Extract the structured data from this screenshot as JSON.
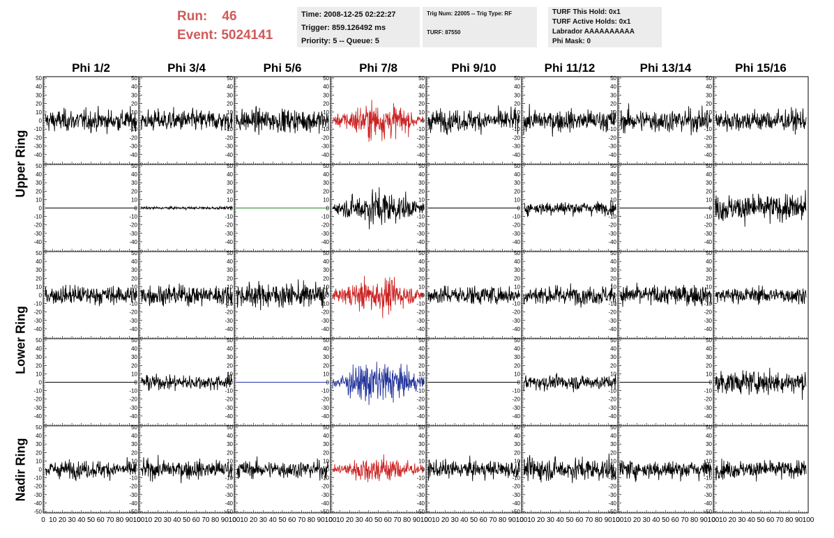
{
  "header": {
    "run_label": "Run:",
    "run_value": "46",
    "event_label": "Event:",
    "event_value": "5024141"
  },
  "info_panel_1": {
    "time": "Time: 2008-12-25 02:22:27",
    "trigger": "Trigger: 859.126492 ms",
    "priority": "Priority: 5 -- Queue: 5"
  },
  "info_panel_2": {
    "trig": "Trig Num: 22005 -- Trig Type: RF",
    "turf": "TURF: 87550"
  },
  "info_panel_3": {
    "this_hold": "TURF This Hold: 0x1",
    "active_holds": "TURF Active Holds: 0x1",
    "labrador": "Labrador AAAAAAAAAA",
    "phi_mask": "Phi Mask: 0"
  },
  "columns": [
    "Phi 1/2",
    "Phi 3/4",
    "Phi 5/6",
    "Phi 7/8",
    "Phi 9/10",
    "Phi 11/12",
    "Phi 13/14",
    "Phi 15/16"
  ],
  "ring_labels": {
    "upper": "Upper Ring",
    "lower": "Lower Ring",
    "nadir": "Nadir Ring"
  },
  "axes": {
    "y_ticks": [
      "50",
      "40",
      "30",
      "20",
      "10",
      "0",
      "-10",
      "-20",
      "-30",
      "-40"
    ],
    "y_ticks_bottom": [
      "50",
      "40",
      "30",
      "20",
      "10",
      "0",
      "-10",
      "-20",
      "-30",
      "-40",
      "-50"
    ],
    "x_ticks": [
      "0",
      "10",
      "20",
      "30",
      "40",
      "50",
      "60",
      "70",
      "80",
      "90",
      "100"
    ],
    "ylim": [
      -50,
      50
    ],
    "xlim": [
      0,
      100
    ]
  },
  "chart_data": {
    "type": "line",
    "rows": 5,
    "cols": 8,
    "panels": [
      {
        "row": 0,
        "col": 0,
        "color": "#000000",
        "amplitude": 16
      },
      {
        "row": 0,
        "col": 1,
        "color": "#000000",
        "amplitude": 16
      },
      {
        "row": 0,
        "col": 2,
        "color": "#000000",
        "amplitude": 17
      },
      {
        "row": 0,
        "col": 3,
        "color": "#cc2222",
        "amplitude": 22
      },
      {
        "row": 0,
        "col": 4,
        "color": "#000000",
        "amplitude": 16
      },
      {
        "row": 0,
        "col": 5,
        "color": "#000000",
        "amplitude": 16
      },
      {
        "row": 0,
        "col": 6,
        "color": "#000000",
        "amplitude": 17
      },
      {
        "row": 0,
        "col": 7,
        "color": "#000000",
        "amplitude": 16
      },
      {
        "row": 1,
        "col": 0,
        "color": "#000000",
        "amplitude": 0
      },
      {
        "row": 1,
        "col": 1,
        "color": "#000000",
        "amplitude": 2
      },
      {
        "row": 1,
        "col": 2,
        "color": "#228822",
        "amplitude": 0
      },
      {
        "row": 1,
        "col": 3,
        "color": "#000000",
        "amplitude": 22
      },
      {
        "row": 1,
        "col": 4,
        "color": "#000000",
        "amplitude": 0
      },
      {
        "row": 1,
        "col": 5,
        "color": "#000000",
        "amplitude": 10
      },
      {
        "row": 1,
        "col": 6,
        "color": "#000000",
        "amplitude": 0
      },
      {
        "row": 1,
        "col": 7,
        "color": "#000000",
        "amplitude": 20
      },
      {
        "row": 2,
        "col": 0,
        "color": "#000000",
        "amplitude": 14
      },
      {
        "row": 2,
        "col": 1,
        "color": "#000000",
        "amplitude": 15
      },
      {
        "row": 2,
        "col": 2,
        "color": "#000000",
        "amplitude": 18
      },
      {
        "row": 2,
        "col": 3,
        "color": "#cc2222",
        "amplitude": 21
      },
      {
        "row": 2,
        "col": 4,
        "color": "#000000",
        "amplitude": 14
      },
      {
        "row": 2,
        "col": 5,
        "color": "#000000",
        "amplitude": 14
      },
      {
        "row": 2,
        "col": 6,
        "color": "#000000",
        "amplitude": 15
      },
      {
        "row": 2,
        "col": 7,
        "color": "#000000",
        "amplitude": 12
      },
      {
        "row": 3,
        "col": 0,
        "color": "#000000",
        "amplitude": 0
      },
      {
        "row": 3,
        "col": 1,
        "color": "#000000",
        "amplitude": 11
      },
      {
        "row": 3,
        "col": 2,
        "color": "#2233aa",
        "amplitude": 0
      },
      {
        "row": 3,
        "col": 3,
        "color": "#223399",
        "amplitude": 26
      },
      {
        "row": 3,
        "col": 4,
        "color": "#000000",
        "amplitude": 0
      },
      {
        "row": 3,
        "col": 5,
        "color": "#000000",
        "amplitude": 11
      },
      {
        "row": 3,
        "col": 6,
        "color": "#000000",
        "amplitude": 0
      },
      {
        "row": 3,
        "col": 7,
        "color": "#000000",
        "amplitude": 17
      },
      {
        "row": 4,
        "col": 0,
        "color": "#000000",
        "amplitude": 13
      },
      {
        "row": 4,
        "col": 1,
        "color": "#000000",
        "amplitude": 14
      },
      {
        "row": 4,
        "col": 2,
        "color": "#000000",
        "amplitude": 13
      },
      {
        "row": 4,
        "col": 3,
        "color": "#cc2222",
        "amplitude": 17
      },
      {
        "row": 4,
        "col": 4,
        "color": "#000000",
        "amplitude": 13
      },
      {
        "row": 4,
        "col": 5,
        "color": "#000000",
        "amplitude": 17
      },
      {
        "row": 4,
        "col": 6,
        "color": "#000000",
        "amplitude": 14
      },
      {
        "row": 4,
        "col": 7,
        "color": "#000000",
        "amplitude": 13
      }
    ]
  }
}
